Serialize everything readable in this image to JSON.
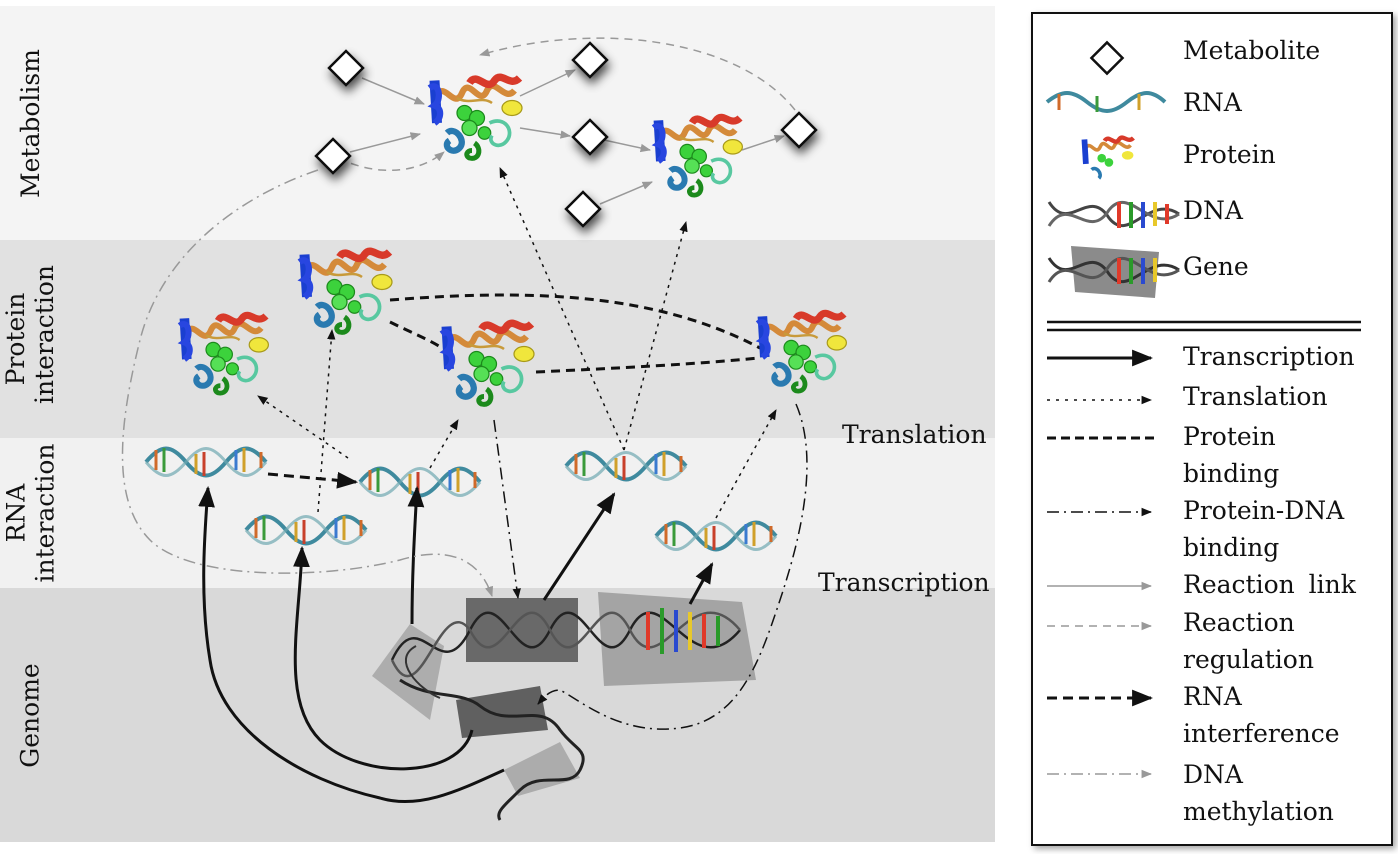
{
  "bands": [
    {
      "id": "metabolism",
      "label": "Metabolism"
    },
    {
      "id": "protein",
      "label": "Protein interaction"
    },
    {
      "id": "rna",
      "label": "RNA interaction"
    },
    {
      "id": "genome",
      "label": "Genome"
    }
  ],
  "level_labels": {
    "translation": "Translation",
    "transcription": "Transcription"
  },
  "legend": {
    "nodes": [
      {
        "icon": "metabolite-icon",
        "label": "Metabolite"
      },
      {
        "icon": "rna-icon",
        "label": "RNA"
      },
      {
        "icon": "protein-icon",
        "label": "Protein"
      },
      {
        "icon": "dna-icon",
        "label": "DNA"
      },
      {
        "icon": "gene-icon",
        "label": "Gene"
      }
    ],
    "edges": [
      {
        "style": "solid-thick",
        "label": "Transcription"
      },
      {
        "style": "dotted",
        "label": "Translation"
      },
      {
        "style": "dashed-thick",
        "label": "Protein binding"
      },
      {
        "style": "dash-dot",
        "label": "Protein-DNA binding"
      },
      {
        "style": "gray-solid",
        "label": "Reaction link"
      },
      {
        "style": "gray-dashed",
        "label": "Reaction regulation"
      },
      {
        "style": "thick-dash-arrow",
        "label": "RNA interference"
      },
      {
        "style": "gray-dash-dot",
        "label": "DNA methylation"
      }
    ]
  },
  "colors": {
    "band_metabolism": "#f4f4f4",
    "band_protein": "#e1e1e1",
    "band_rna": "#f1f1f1",
    "band_genome": "#d9d9d9",
    "rna_strand": "#3f8a9e",
    "helix_red": "#d83a2a",
    "helix_blue": "#1a3fd0",
    "helix_green": "#3cd23c",
    "helix_yellow": "#f0e63c",
    "helix_orange": "#d48a3a"
  }
}
